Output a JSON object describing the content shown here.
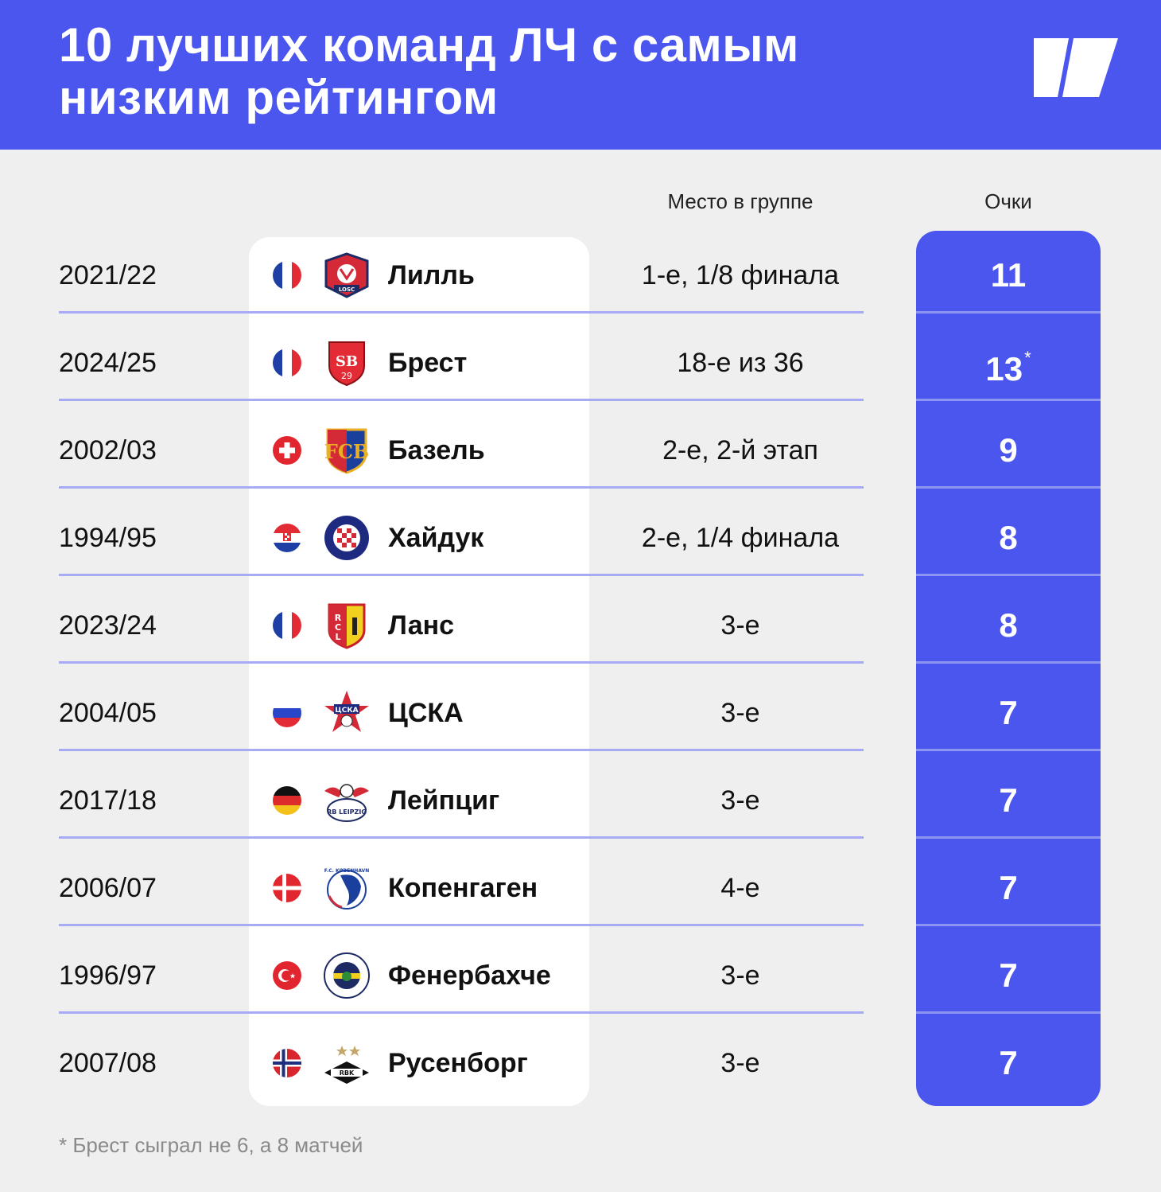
{
  "header": {
    "title": "10 лучших команд ЛЧ с самым низким рейтингом",
    "bg_color": "#4a56ee",
    "logo_icon": "brand-logo-icon"
  },
  "columns": {
    "place": "Место в группе",
    "points": "Очки"
  },
  "rows": [
    {
      "season": "2021/22",
      "flag": "france",
      "crest": "lille-crest",
      "team": "Лилль",
      "place": "1-е, 1/8 финала",
      "points": "11",
      "mark": ""
    },
    {
      "season": "2024/25",
      "flag": "france",
      "crest": "brest-crest",
      "team": "Брест",
      "place": "18-е из 36",
      "points": "13",
      "mark": "*"
    },
    {
      "season": "2002/03",
      "flag": "switzerland",
      "crest": "basel-crest",
      "team": "Базель",
      "place": "2-е, 2-й этап",
      "points": "9",
      "mark": ""
    },
    {
      "season": "1994/95",
      "flag": "croatia",
      "crest": "hajduk-crest",
      "team": "Хайдук",
      "place": "2-е, 1/4 финала",
      "points": "8",
      "mark": ""
    },
    {
      "season": "2023/24",
      "flag": "france",
      "crest": "lens-crest",
      "team": "Ланс",
      "place": "3-е",
      "points": "8",
      "mark": ""
    },
    {
      "season": "2004/05",
      "flag": "russia",
      "crest": "cska-crest",
      "team": "ЦСКА",
      "place": "3-е",
      "points": "7",
      "mark": ""
    },
    {
      "season": "2017/18",
      "flag": "germany",
      "crest": "leipzig-crest",
      "team": "Лейпциг",
      "place": "3-е",
      "points": "7",
      "mark": ""
    },
    {
      "season": "2006/07",
      "flag": "denmark",
      "crest": "copenhagen-crest",
      "team": "Копенгаген",
      "place": "4-е",
      "points": "7",
      "mark": ""
    },
    {
      "season": "1996/97",
      "flag": "turkey",
      "crest": "fenerbahce-crest",
      "team": "Фенербахче",
      "place": "3-е",
      "points": "7",
      "mark": ""
    },
    {
      "season": "2007/08",
      "flag": "norway",
      "crest": "rosenborg-crest",
      "team": "Русенборг",
      "place": "3-е",
      "points": "7",
      "mark": ""
    }
  ],
  "footnote": "* Брест сыграл не 6, а 8 матчей"
}
